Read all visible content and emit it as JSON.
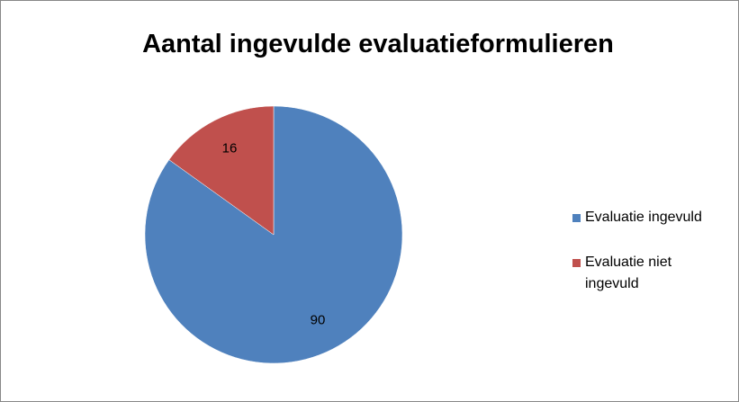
{
  "chart_data": {
    "type": "pie",
    "title": "Aantal ingevulde evaluatieformulieren",
    "categories": [
      "Evaluatie ingevuld",
      "Evaluatie niet ingevuld"
    ],
    "values": [
      90,
      16
    ],
    "colors": [
      "#4f81bd",
      "#c0504d"
    ],
    "legend": "right"
  }
}
